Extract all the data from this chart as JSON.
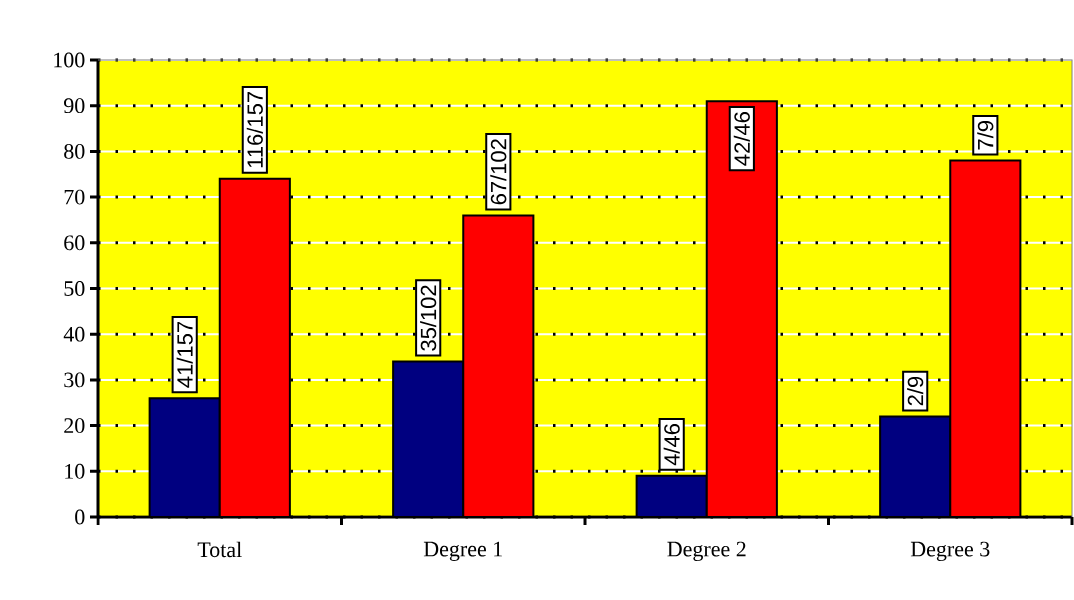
{
  "chart_data": {
    "type": "bar",
    "categories": [
      "Total",
      "Degree 1",
      "Degree 2",
      "Degree 3"
    ],
    "series": [
      {
        "color": "#000080",
        "values": [
          26,
          34,
          9,
          22
        ],
        "value_labels": [
          "41/157",
          "35/102",
          "4/46",
          "2/9"
        ]
      },
      {
        "color": "#ff0000",
        "values": [
          74,
          66,
          91,
          78
        ],
        "value_labels": [
          "116/157",
          "67/102",
          "42/46",
          "7/9"
        ]
      }
    ],
    "ylim": [
      0,
      100
    ],
    "yticks": [
      0,
      10,
      20,
      30,
      40,
      50,
      60,
      70,
      80,
      90,
      100
    ],
    "grid": "y"
  }
}
